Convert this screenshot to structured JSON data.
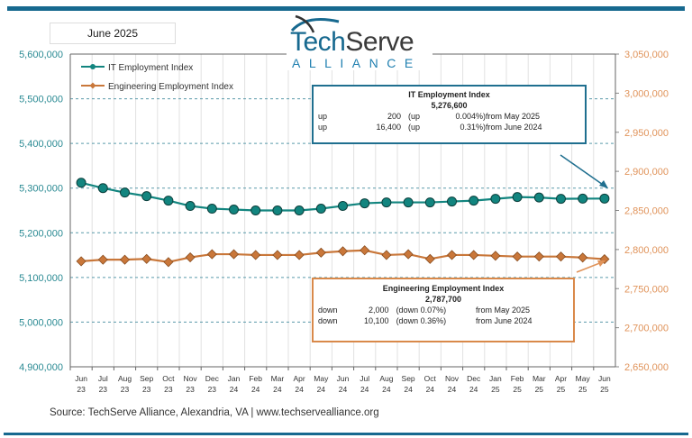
{
  "header": {
    "date_label": "June 2025",
    "logo_text": "TechServe ALLIANCE"
  },
  "colors": {
    "it": "#12857f",
    "eng": "#c9773a",
    "left_axis": "#2a8a93",
    "right_axis": "#e0935a",
    "frame": "#17698f"
  },
  "callouts": {
    "it": {
      "title": "IT Employment Index",
      "value": "5,276,600",
      "rows": [
        [
          "up",
          "200",
          "(up",
          "0.004%)",
          "from May  2025"
        ],
        [
          "up",
          "16,400",
          "(up",
          "0.31%)",
          "from June 2024"
        ]
      ]
    },
    "eng": {
      "title": "Engineering Employment Index",
      "value": "2,787,700",
      "rows": [
        [
          "down",
          "2,000",
          "(down 0.07%)",
          "",
          "from  May 2025"
        ],
        [
          "down",
          "10,100",
          "(down 0.36%)",
          "",
          "from  June 2024"
        ]
      ]
    }
  },
  "source": "Source: TechServe Alliance, Alexandria, VA | www.techservealliance.org",
  "chart_data": {
    "type": "line",
    "categories": [
      "Jun 23",
      "Jul 23",
      "Aug 23",
      "Sep 23",
      "Oct 23",
      "Nov 23",
      "Dec 23",
      "Jan 24",
      "Feb 24",
      "Mar 24",
      "Apr 24",
      "May 24",
      "Jun 24",
      "Jul 24",
      "Aug 24",
      "Sep 24",
      "Oct 24",
      "Nov 24",
      "Dec 24",
      "Jan 25",
      "Feb 25",
      "Mar 25",
      "Apr 25",
      "May 25",
      "Jun 25"
    ],
    "series": [
      {
        "name": "IT Employment Index",
        "axis": "left",
        "marker": "circle",
        "values": [
          5312000,
          5300000,
          5290000,
          5282000,
          5272000,
          5260000,
          5254000,
          5252000,
          5250000,
          5250000,
          5250000,
          5254000,
          5260200,
          5266000,
          5268000,
          5268000,
          5268000,
          5270000,
          5272000,
          5276000,
          5280000,
          5279000,
          5276000,
          5276400,
          5276600
        ]
      },
      {
        "name": "Engineering Employment Index",
        "axis": "right",
        "marker": "diamond",
        "values": [
          2785000,
          2787000,
          2787000,
          2788000,
          2784000,
          2790000,
          2794000,
          2794000,
          2793000,
          2793000,
          2793000,
          2796000,
          2797800,
          2799000,
          2793000,
          2794000,
          2788000,
          2793000,
          2793000,
          2792000,
          2791000,
          2791000,
          2791000,
          2789700,
          2787700
        ]
      }
    ],
    "y_left": {
      "range": [
        4900000,
        5600000
      ],
      "ticks": [
        "4,900,000",
        "5,000,000",
        "5,100,000",
        "5,200,000",
        "5,300,000",
        "5,400,000",
        "5,500,000",
        "5,600,000"
      ]
    },
    "y_right": {
      "range": [
        2650000,
        3050000
      ],
      "ticks": [
        "2,650,000",
        "2,700,000",
        "2,750,000",
        "2,800,000",
        "2,850,000",
        "2,900,000",
        "2,950,000",
        "3,000,000",
        "3,050,000"
      ]
    },
    "grid": true,
    "legend": "top-left"
  }
}
